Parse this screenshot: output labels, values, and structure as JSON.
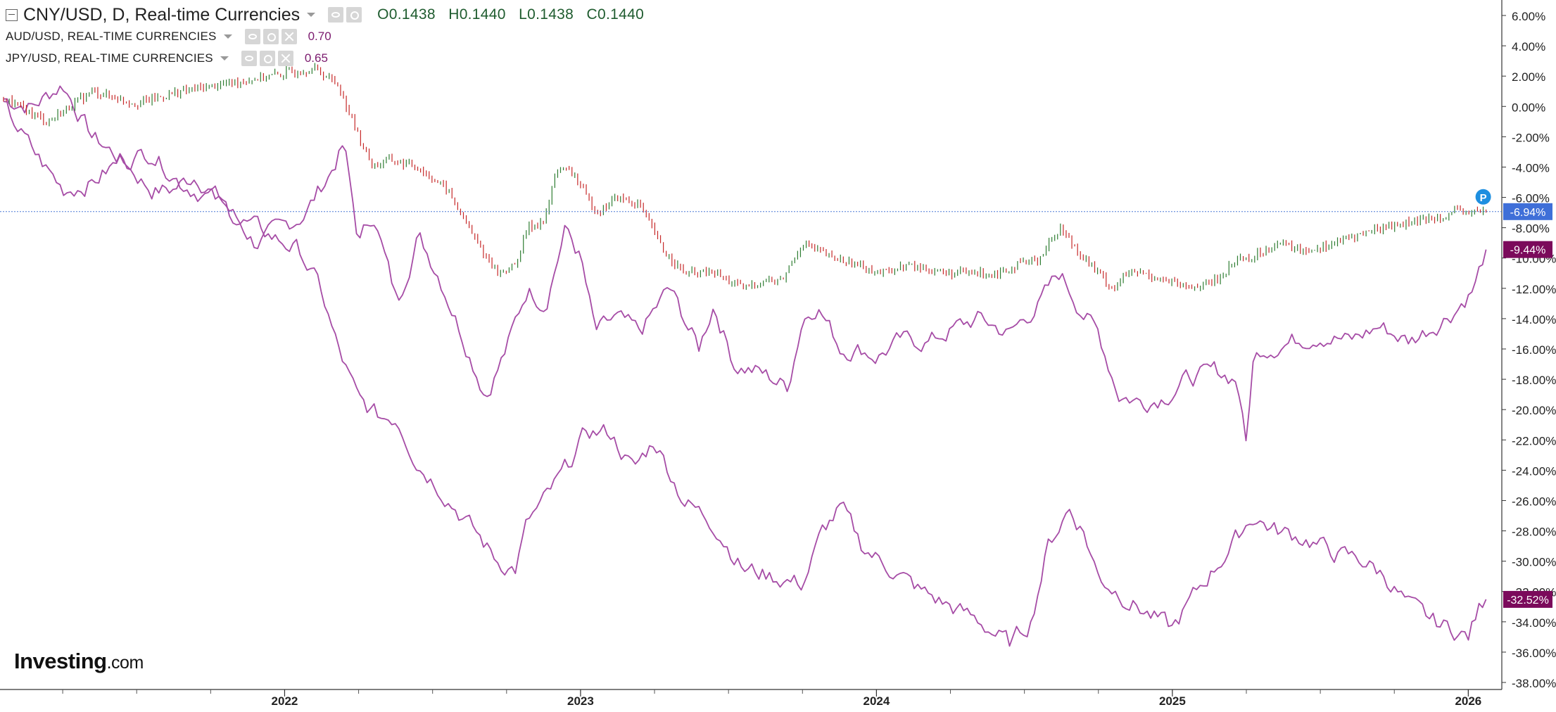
{
  "legend": {
    "main": {
      "title": "CNY/USD, D, Real-time Currencies",
      "open": "0.1438",
      "high": "0.1440",
      "low": "0.1438",
      "close": "0.1440",
      "open_label": "O",
      "high_label": "H",
      "low_label": "L",
      "close_label": "C"
    },
    "series2": {
      "title": "AUD/USD, REAL-TIME CURRENCIES",
      "value": "0.70"
    },
    "series3": {
      "title": "JPY/USD, REAL-TIME CURRENCIES",
      "value": "0.65"
    }
  },
  "logo": {
    "brand": "Investing",
    "suffix": ".com"
  },
  "colors": {
    "up_candle": "#2e7d32",
    "down_candle": "#c62828",
    "compare_line": "#a64ca6",
    "cny_badge": "#3f6fd8",
    "compare_badge": "#7b0a5b",
    "price_line": "#4a78d6"
  },
  "price_marker": "P",
  "chart_data": {
    "type": "line",
    "scale": "percent change",
    "xlabel": "",
    "ylabel": "",
    "ylim": [
      -38,
      6
    ],
    "y_ticks": [
      "6.00%",
      "4.00%",
      "2.00%",
      "0.00%",
      "-2.00%",
      "-4.00%",
      "-6.00%",
      "-8.00%",
      "-10.00%",
      "-12.00%",
      "-14.00%",
      "-16.00%",
      "-18.00%",
      "-20.00%",
      "-22.00%",
      "-24.00%",
      "-26.00%",
      "-28.00%",
      "-30.00%",
      "-32.00%",
      "-34.00%",
      "-36.00%",
      "-38.00%"
    ],
    "x_ticks": [
      "2022",
      "2023",
      "2024",
      "2025",
      "2026"
    ],
    "xlim": [
      2021.05,
      2026.08
    ],
    "grid": false,
    "legend_position": "top-left",
    "series": [
      {
        "name": "CNY/USD",
        "style": "candles",
        "last_label": "-6.94%",
        "x": [
          2021.05,
          2021.2,
          2021.35,
          2021.5,
          2021.65,
          2021.8,
          2021.95,
          2022.1,
          2022.18,
          2022.25,
          2022.3,
          2022.35,
          2022.45,
          2022.55,
          2022.65,
          2022.72,
          2022.78,
          2022.82,
          2022.88,
          2022.92,
          2022.98,
          2023.02,
          2023.06,
          2023.12,
          2023.2,
          2023.28,
          2023.35,
          2023.45,
          2023.55,
          2023.62,
          2023.68,
          2023.75,
          2023.85,
          2023.95,
          2024.02,
          2024.1,
          2024.25,
          2024.4,
          2024.55,
          2024.62,
          2024.68,
          2024.75,
          2024.8,
          2024.85,
          2024.9,
          2024.98,
          2025.05,
          2025.15,
          2025.22,
          2025.27,
          2025.35,
          2025.45,
          2025.55,
          2025.7,
          2025.85,
          2025.95,
          2026.06
        ],
        "values": [
          0.5,
          -1.0,
          1.0,
          0.2,
          1.0,
          1.5,
          2.0,
          2.5,
          1.5,
          -2.0,
          -4.0,
          -3.5,
          -4.0,
          -5.5,
          -9.0,
          -11.0,
          -10.5,
          -8.0,
          -7.5,
          -4.0,
          -4.5,
          -6.0,
          -7.0,
          -6.0,
          -6.5,
          -9.5,
          -11.0,
          -11.0,
          -12.0,
          -11.5,
          -11.5,
          -9.0,
          -10.0,
          -10.5,
          -11.0,
          -10.5,
          -11.0,
          -11.0,
          -10.0,
          -8.0,
          -9.5,
          -11.0,
          -12.0,
          -11.0,
          -11.0,
          -11.5,
          -12.0,
          -11.5,
          -10.0,
          -10.0,
          -9.0,
          -9.5,
          -9.0,
          -8.0,
          -7.5,
          -7.0,
          -6.94
        ]
      },
      {
        "name": "AUD/USD",
        "style": "line",
        "last_label": "-9.44%",
        "x": [
          2021.05,
          2021.15,
          2021.25,
          2021.35,
          2021.45,
          2021.55,
          2021.62,
          2021.7,
          2021.8,
          2021.9,
          2022.0,
          2022.07,
          2022.15,
          2022.2,
          2022.25,
          2022.3,
          2022.38,
          2022.45,
          2022.52,
          2022.6,
          2022.68,
          2022.75,
          2022.82,
          2022.88,
          2022.95,
          2023.0,
          2023.05,
          2023.12,
          2023.2,
          2023.3,
          2023.4,
          2023.45,
          2023.52,
          2023.6,
          2023.7,
          2023.75,
          2023.8,
          2023.88,
          2023.95,
          2024.0,
          2024.08,
          2024.18,
          2024.28,
          2024.35,
          2024.45,
          2024.55,
          2024.62,
          2024.68,
          2024.75,
          2024.82,
          2024.9,
          2024.98,
          2025.05,
          2025.15,
          2025.22,
          2025.25,
          2025.27,
          2025.3,
          2025.4,
          2025.5,
          2025.6,
          2025.7,
          2025.8,
          2025.88,
          2025.95,
          2026.02,
          2026.06
        ],
        "values": [
          0.5,
          0,
          1.5,
          -2.0,
          -3.5,
          -5.5,
          -5.5,
          -4.5,
          -6.5,
          -9.0,
          -8.0,
          -7.0,
          -4.5,
          -2.5,
          -9.0,
          -7.0,
          -13.0,
          -8.5,
          -11.0,
          -15.0,
          -19.0,
          -16.0,
          -12.0,
          -13.0,
          -8.0,
          -10.0,
          -15.0,
          -14.0,
          -15.0,
          -12.0,
          -16.0,
          -13.0,
          -17.0,
          -17.5,
          -18.5,
          -14.0,
          -13.0,
          -16.0,
          -16.0,
          -16.5,
          -15.5,
          -15.5,
          -14.5,
          -14.0,
          -15.0,
          -13.0,
          -11.0,
          -13.0,
          -15.0,
          -19.0,
          -19.5,
          -19.0,
          -18.0,
          -17.5,
          -18.0,
          -22.5,
          -17.0,
          -16.0,
          -15.5,
          -15.0,
          -15.5,
          -14.5,
          -15.5,
          -14.5,
          -13.5,
          -12.0,
          -9.44
        ]
      },
      {
        "name": "JPY/USD",
        "style": "line",
        "last_label": "-32.52%",
        "x": [
          2021.05,
          2021.15,
          2021.25,
          2021.35,
          2021.45,
          2021.55,
          2021.65,
          2021.75,
          2021.85,
          2021.95,
          2022.05,
          2022.12,
          2022.18,
          2022.25,
          2022.32,
          2022.38,
          2022.45,
          2022.52,
          2022.6,
          2022.68,
          2022.72,
          2022.78,
          2022.82,
          2022.88,
          2022.95,
          2023.02,
          2023.1,
          2023.18,
          2023.25,
          2023.35,
          2023.45,
          2023.55,
          2023.65,
          2023.75,
          2023.82,
          2023.88,
          2023.95,
          2024.05,
          2024.15,
          2024.25,
          2024.35,
          2024.45,
          2024.52,
          2024.58,
          2024.65,
          2024.7,
          2024.75,
          2024.85,
          2024.92,
          2025.0,
          2025.05,
          2025.12,
          2025.2,
          2025.27,
          2025.35,
          2025.45,
          2025.55,
          2025.65,
          2025.72,
          2025.8,
          2025.88,
          2025.95,
          2026.0,
          2026.04,
          2026.06
        ],
        "values": [
          0.0,
          -3.0,
          -5.5,
          -5.0,
          -3.5,
          -3.0,
          -5.0,
          -6.0,
          -7.5,
          -8.5,
          -9.5,
          -12.0,
          -16.0,
          -19.5,
          -20.5,
          -20.5,
          -23.5,
          -25.0,
          -27.0,
          -29.0,
          -30.0,
          -30.5,
          -27.5,
          -26.0,
          -24.0,
          -21.5,
          -21.5,
          -24.0,
          -22.0,
          -26.0,
          -27.5,
          -30.5,
          -31.0,
          -31.5,
          -28.0,
          -26.5,
          -29.0,
          -30.5,
          -32.0,
          -33.0,
          -34.0,
          -35.5,
          -34.0,
          -29.0,
          -26.5,
          -28.0,
          -31.0,
          -32.5,
          -33.5,
          -34.5,
          -33.0,
          -31.0,
          -29.0,
          -27.0,
          -28.0,
          -28.5,
          -29.5,
          -30.0,
          -31.0,
          -33.0,
          -34.0,
          -34.5,
          -35.0,
          -33.0,
          -32.52
        ]
      }
    ]
  }
}
